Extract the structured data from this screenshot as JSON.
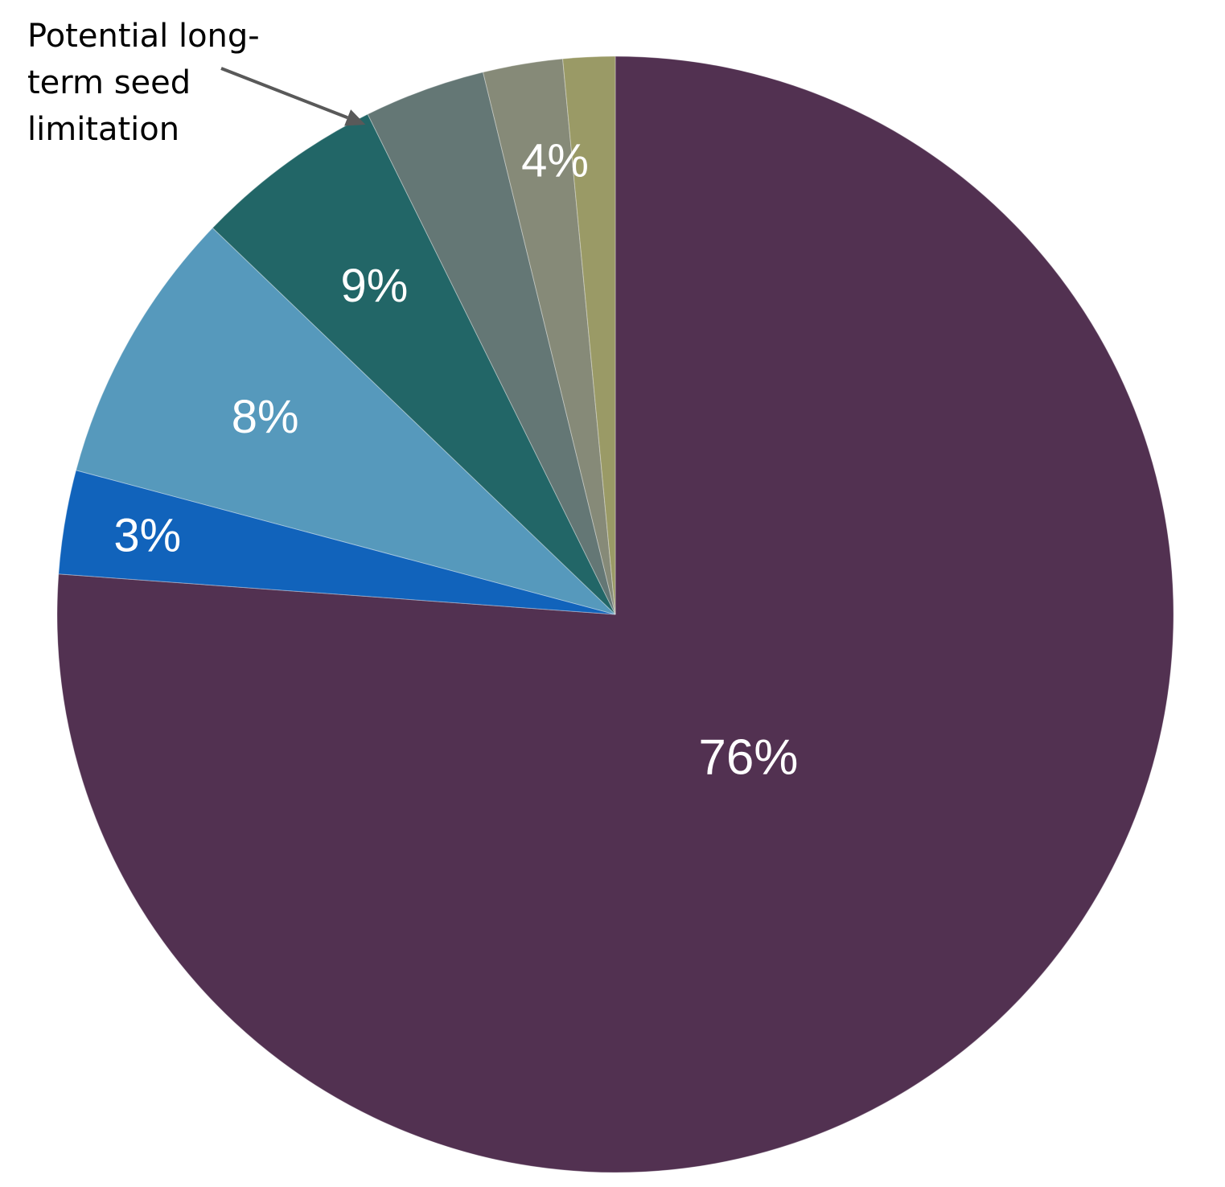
{
  "chart_data": {
    "type": "pie",
    "start_angle_deg": 0,
    "direction": "clockwise",
    "slices": [
      {
        "value": 76,
        "color": "#523151",
        "label": "76%"
      },
      {
        "value": 3,
        "color": "#1163BB",
        "label": "3%"
      },
      {
        "value": 8,
        "color": "#5699BC",
        "label": "8%"
      },
      {
        "value": 5.5,
        "color": "#226667",
        "label": "9%"
      },
      {
        "value": 3.5,
        "color": "#647775",
        "label": ""
      },
      {
        "value": 2.3,
        "color": "#868A78",
        "label": "4%"
      },
      {
        "value": 1.5,
        "color": "#9A9A66",
        "label": ""
      }
    ],
    "annotation": {
      "lines": [
        "Potential long-",
        "term seed",
        "limitation"
      ],
      "target_slice_index": 4,
      "arrow_color": "#595959"
    }
  }
}
